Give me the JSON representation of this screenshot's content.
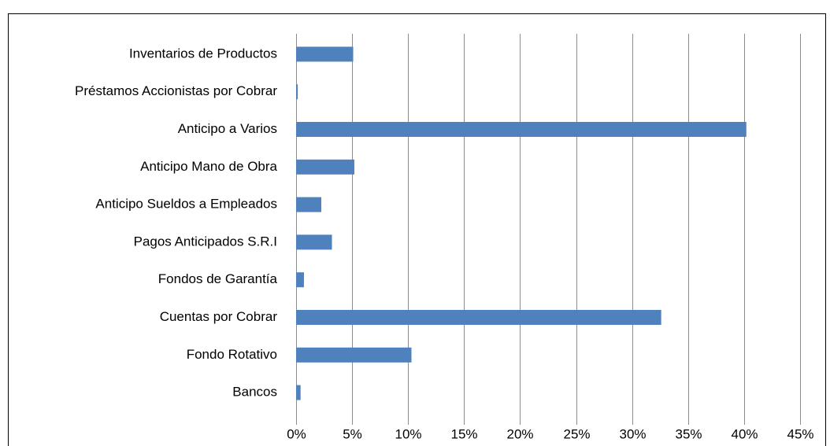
{
  "chart_data": {
    "type": "bar",
    "orientation": "horizontal",
    "categories": [
      "Inventarios de Productos",
      "Préstamos Accionistas por Cobrar",
      "Anticipo a Varios",
      "Anticipo Mano de Obra",
      "Anticipo Sueldos a Empleados",
      "Pagos Anticipados S.R.I",
      "Fondos de Garantía",
      "Cuentas por Cobrar",
      "Fondo Rotativo",
      "Bancos"
    ],
    "values": [
      5.1,
      0.15,
      40.2,
      5.2,
      2.25,
      3.2,
      0.7,
      32.6,
      10.3,
      0.4
    ],
    "color": "#4f81bd",
    "xlim": [
      0,
      45
    ],
    "xticks": [
      {
        "value": 0,
        "label": "0%"
      },
      {
        "value": 5,
        "label": "5%"
      },
      {
        "value": 10,
        "label": "10%"
      },
      {
        "value": 15,
        "label": "15%"
      },
      {
        "value": 20,
        "label": "20%"
      },
      {
        "value": 25,
        "label": "25%"
      },
      {
        "value": 30,
        "label": "30%"
      },
      {
        "value": 35,
        "label": "35%"
      },
      {
        "value": 40,
        "label": "40%"
      },
      {
        "value": 45,
        "label": "45%"
      }
    ],
    "grid": true
  }
}
